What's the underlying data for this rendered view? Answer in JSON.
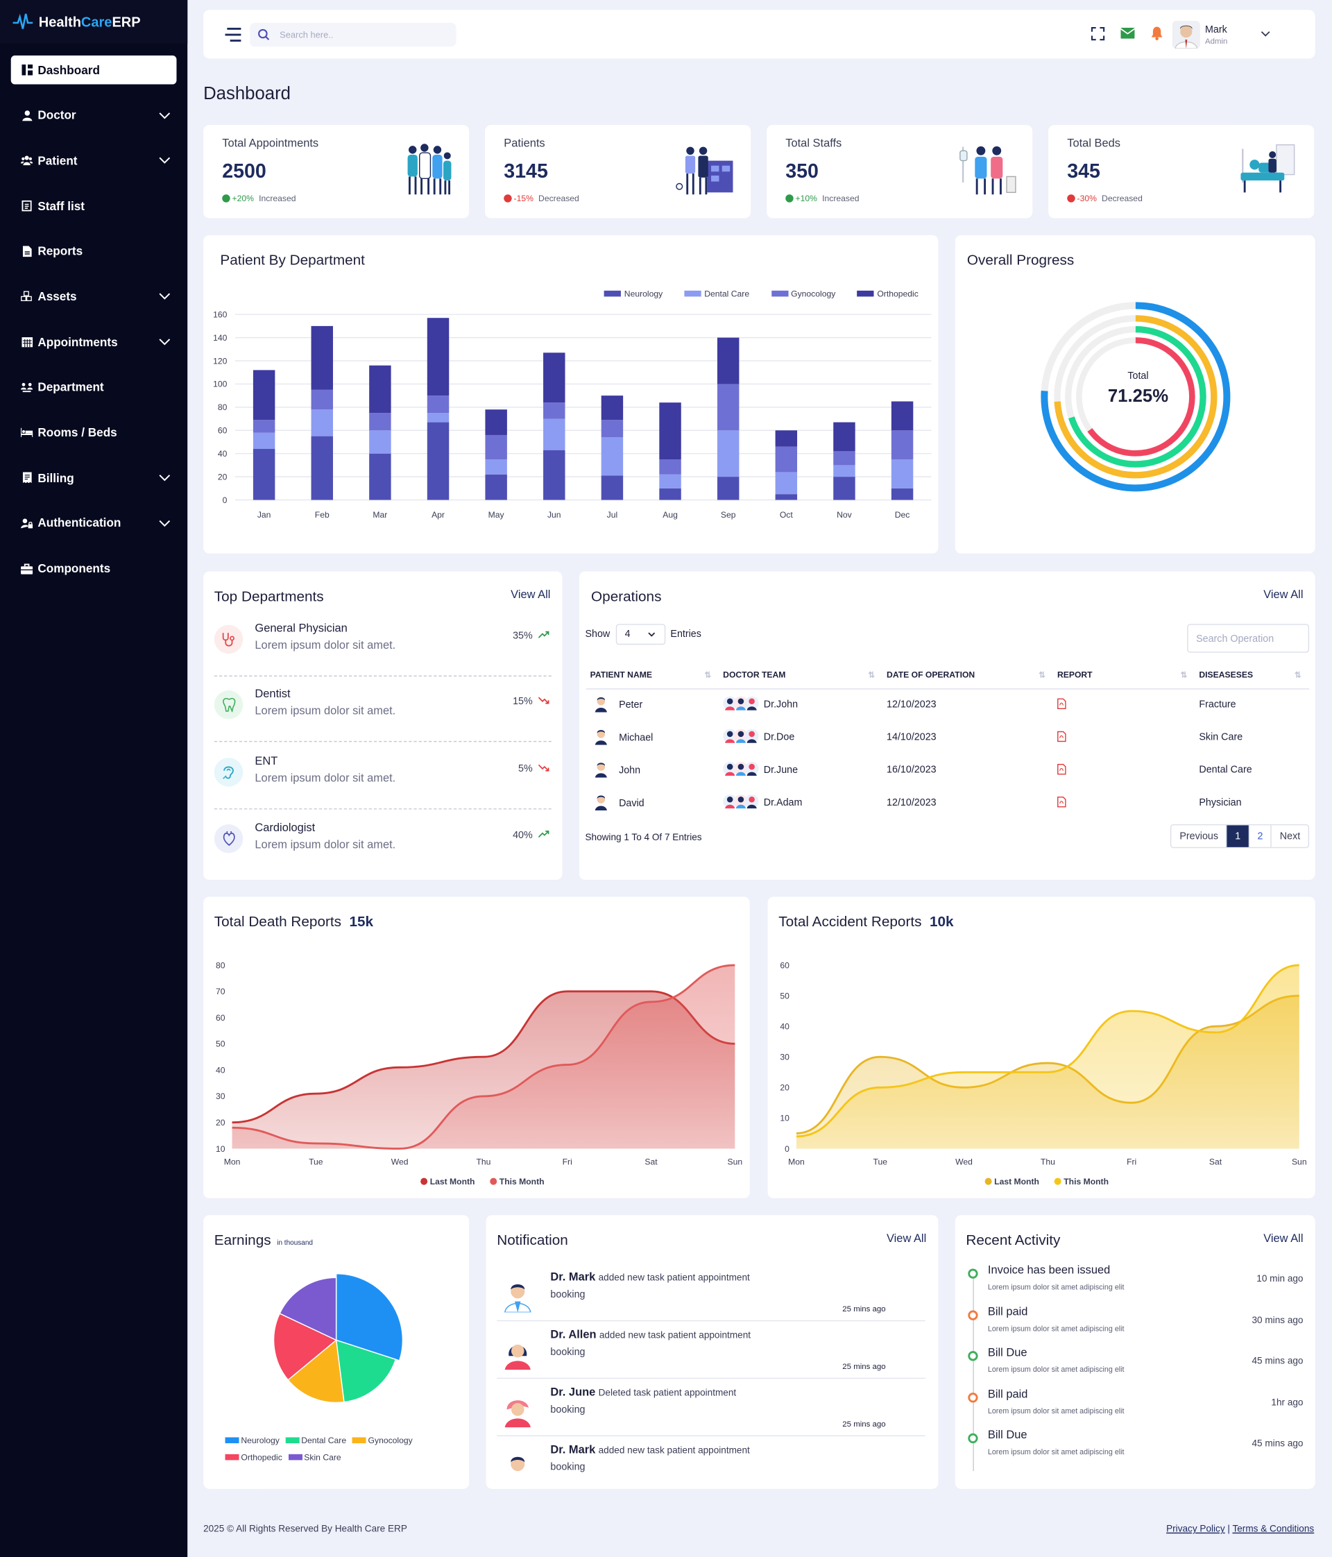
{
  "app": {
    "brand_prefix": "Health ",
    "brand_accent": "Care",
    "brand_suffix": " ERP"
  },
  "sidebar": {
    "items": [
      {
        "label": "Dashboard",
        "icon": "dashboard-icon",
        "active": true,
        "chevron": false
      },
      {
        "label": "Doctor",
        "icon": "user-icon",
        "chevron": true
      },
      {
        "label": "Patient",
        "icon": "users-icon",
        "chevron": true
      },
      {
        "label": "Staff list",
        "icon": "list-icon",
        "chevron": false
      },
      {
        "label": "Reports",
        "icon": "file-icon",
        "chevron": false
      },
      {
        "label": "Assets",
        "icon": "boxes-icon",
        "chevron": true
      },
      {
        "label": "Appointments",
        "icon": "calendar-icon",
        "chevron": true
      },
      {
        "label": "Department",
        "icon": "department-icon",
        "chevron": false
      },
      {
        "label": "Rooms / Beds",
        "icon": "bed-icon",
        "chevron": false
      },
      {
        "label": "Billing",
        "icon": "receipt-icon",
        "chevron": true
      },
      {
        "label": "Authentication",
        "icon": "user-lock-icon",
        "chevron": true
      },
      {
        "label": "Components",
        "icon": "toolbox-icon",
        "chevron": false
      }
    ]
  },
  "topbar": {
    "search_placeholder": "Search here..",
    "user_name": "Mark",
    "user_role": "Admin"
  },
  "page": {
    "title": "Dashboard"
  },
  "stats": [
    {
      "label": "Total Appointments",
      "value": "2500",
      "change": "+20%",
      "change_text": "Increased",
      "trend": "up"
    },
    {
      "label": "Patients",
      "value": "3145",
      "change": "-15%",
      "change_text": "Decreased",
      "trend": "down"
    },
    {
      "label": "Total Staffs",
      "value": "350",
      "change": "+10%",
      "change_text": "Increased",
      "trend": "up"
    },
    {
      "label": "Total Beds",
      "value": "345",
      "change": "-30%",
      "change_text": "Decreased",
      "trend": "down"
    }
  ],
  "patient_dept": {
    "title": "Patient By Department",
    "legend": [
      "Neurology",
      "Dental Care",
      "Gynocology",
      "Orthopedic"
    ],
    "colors": {
      "Neurology": "#4e4fb4",
      "Dental Care": "#8c9cf2",
      "Gynocology": "#6f70d3",
      "Orthopedic": "#3d3aa0"
    }
  },
  "overall": {
    "title": "Overall Progress",
    "label": "Total",
    "value": "71.25%"
  },
  "top_departments": {
    "title": "Top Departments",
    "view_all": "View All",
    "items": [
      {
        "name": "General Physician",
        "desc": "Lorem ipsum dolor sit amet.",
        "percent": "35%",
        "trend": "up",
        "icon": "stethoscope-icon",
        "bg": "#fdecec",
        "fg": "#e44b4b"
      },
      {
        "name": "Dentist",
        "desc": "Lorem ipsum dolor sit amet.",
        "percent": "15%",
        "trend": "down",
        "icon": "tooth-icon",
        "bg": "#e8f7ec",
        "fg": "#3fae5c"
      },
      {
        "name": "ENT",
        "desc": "Lorem ipsum dolor sit amet.",
        "percent": "5%",
        "trend": "down",
        "icon": "ear-icon",
        "bg": "#e6f6fb",
        "fg": "#2aa6c4"
      },
      {
        "name": "Cardiologist",
        "desc": "Lorem ipsum dolor sit amet.",
        "percent": "40%",
        "trend": "up",
        "icon": "heart-icon",
        "bg": "#eceefa",
        "fg": "#4e4fb4"
      }
    ]
  },
  "operations": {
    "title": "Operations",
    "view_all": "View All",
    "show_label": "Show",
    "show_value": "4",
    "entries_label": "Entries",
    "search_placeholder": "Search Operation",
    "columns": [
      "PATIENT NAME",
      "DOCTOR TEAM",
      "DATE OF OPERATION",
      "REPORT",
      "DISEASESES"
    ],
    "rows": [
      {
        "patient": "Peter",
        "doctor": "Dr.John",
        "date": "12/10/2023",
        "disease": "Fracture"
      },
      {
        "patient": "Michael",
        "doctor": "Dr.Doe",
        "date": "14/10/2023",
        "disease": "Skin Care"
      },
      {
        "patient": "John",
        "doctor": "Dr.June",
        "date": "16/10/2023",
        "disease": "Dental Care"
      },
      {
        "patient": "David",
        "doctor": "Dr.Adam",
        "date": "12/10/2023",
        "disease": "Physician"
      }
    ],
    "showing": "Showing 1 To 4 Of 7 Entries",
    "pager": [
      "Previous",
      "1",
      "2",
      "Next"
    ]
  },
  "death": {
    "title": "Total Death Reports",
    "badge": "15k",
    "legend": [
      "Last Month",
      "This Month"
    ]
  },
  "accident": {
    "title": "Total Accident Reports",
    "badge": "10k",
    "legend": [
      "Last Month",
      "This Month"
    ]
  },
  "earnings": {
    "title": "Earnings",
    "subtitle": "in thousand",
    "legend": [
      "Neurology",
      "Dental Care",
      "Gynocology",
      "Orthopedic",
      "Skin Care"
    ]
  },
  "notification": {
    "title": "Notification",
    "view_all": "View All",
    "items": [
      {
        "name": "Dr. Mark",
        "text": "added new task patient appointment",
        "line2": "booking",
        "time": "25 mins ago"
      },
      {
        "name": "Dr. Allen",
        "text": "added new task patient appointment",
        "line2": "booking",
        "time": "25 mins ago"
      },
      {
        "name": "Dr. June",
        "text": "Deleted task patient appointment",
        "line2": "booking",
        "time": "25 mins ago"
      },
      {
        "name": "Dr. Mark",
        "text": "added new task patient appointment",
        "line2": "booking",
        "time": ""
      }
    ]
  },
  "recent": {
    "title": "Recent Activity",
    "view_all": "View All",
    "items": [
      {
        "title": "Invoice has been issued",
        "desc": "Lorem ipsum dolor sit amet adipiscing elit",
        "time": "10 min ago",
        "color": "#3fae5c"
      },
      {
        "title": "Bill paid",
        "desc": "Lorem ipsum dolor sit amet adipiscing elit",
        "time": "30 mins ago",
        "color": "#f27a3e"
      },
      {
        "title": "Bill Due",
        "desc": "Lorem ipsum dolor sit amet adipiscing elit",
        "time": "45 mins ago",
        "color": "#3fae5c"
      },
      {
        "title": "Bill paid",
        "desc": "Lorem ipsum dolor sit amet adipiscing elit",
        "time": "1hr ago",
        "color": "#f27a3e"
      },
      {
        "title": "Bill Due",
        "desc": "Lorem ipsum dolor sit amet adipiscing elit",
        "time": "45 mins ago",
        "color": "#3fae5c"
      }
    ]
  },
  "footer": {
    "copyright": "2025 © All Rights Reserved By Health Care ERP",
    "privacy": "Privacy Policy",
    "separator": "|",
    "terms": "Terms & Conditions"
  },
  "chart_data": [
    {
      "type": "bar",
      "stacked": true,
      "categories": [
        "Jan",
        "Feb",
        "Mar",
        "Apr",
        "May",
        "Jun",
        "Jul",
        "Aug",
        "Sep",
        "Oct",
        "Nov",
        "Dec"
      ],
      "series": [
        {
          "name": "Neurology",
          "values": [
            44,
            55,
            40,
            67,
            22,
            43,
            21,
            10,
            20,
            5,
            20,
            10
          ]
        },
        {
          "name": "Dental Care",
          "values": [
            14,
            23,
            20,
            8,
            13,
            27,
            33,
            12,
            40,
            19,
            10,
            25
          ]
        },
        {
          "name": "Gynocology",
          "values": [
            11,
            17,
            15,
            15,
            21,
            14,
            15,
            13,
            40,
            22,
            12,
            25
          ]
        },
        {
          "name": "Orthopedic",
          "values": [
            43,
            55,
            41,
            67,
            22,
            43,
            21,
            49,
            40,
            14,
            25,
            25
          ]
        }
      ],
      "ylim": [
        0,
        160
      ],
      "yticks": [
        0,
        20,
        40,
        60,
        80,
        100,
        120,
        140,
        160
      ],
      "legend_position": "top-right",
      "grid": true
    },
    {
      "type": "radialBar",
      "total_label": "Total",
      "total_value": "71.25%",
      "rings": [
        {
          "color": "#1e90e8",
          "fraction": 0.76
        },
        {
          "color": "#f8b92a",
          "fraction": 0.74
        },
        {
          "color": "#1ed88f",
          "fraction": 0.7
        },
        {
          "color": "#f04561",
          "fraction": 0.65
        }
      ]
    },
    {
      "type": "area",
      "categories": [
        "Mon",
        "Tue",
        "Wed",
        "Thu",
        "Fri",
        "Sat",
        "Sun"
      ],
      "series": [
        {
          "name": "Last Month",
          "values": [
            20,
            31,
            41,
            45,
            70,
            70,
            50
          ],
          "color": "#c83434"
        },
        {
          "name": "This Month",
          "values": [
            18,
            12,
            10,
            30,
            42,
            66,
            80
          ],
          "color": "#e05a5a"
        }
      ],
      "ylim": [
        10,
        80
      ],
      "yticks": [
        10,
        20,
        30,
        40,
        50,
        60,
        70,
        80
      ],
      "legend_position": "bottom"
    },
    {
      "type": "area",
      "categories": [
        "Mon",
        "Tue",
        "Wed",
        "Thu",
        "Fri",
        "Sat",
        "Sun"
      ],
      "series": [
        {
          "name": "Last Month",
          "values": [
            5,
            30,
            20,
            28,
            15,
            40,
            50
          ],
          "color": "#e8b523"
        },
        {
          "name": "This Month",
          "values": [
            4,
            20,
            25,
            25,
            45,
            38,
            60
          ],
          "color": "#f5c518"
        }
      ],
      "ylim": [
        0,
        60
      ],
      "yticks": [
        0,
        10,
        20,
        30,
        40,
        50,
        60
      ],
      "legend_position": "bottom"
    },
    {
      "type": "pie",
      "slices": [
        {
          "name": "Neurology",
          "value": 30,
          "color": "#1e90f4"
        },
        {
          "name": "Dental Care",
          "value": 18,
          "color": "#1edc8f"
        },
        {
          "name": "Gynocology",
          "value": 16,
          "color": "#fbb31a"
        },
        {
          "name": "Orthopedic",
          "value": 18,
          "color": "#f5455f"
        },
        {
          "name": "Skin Care",
          "value": 18,
          "color": "#7b5ad0"
        }
      ]
    }
  ]
}
